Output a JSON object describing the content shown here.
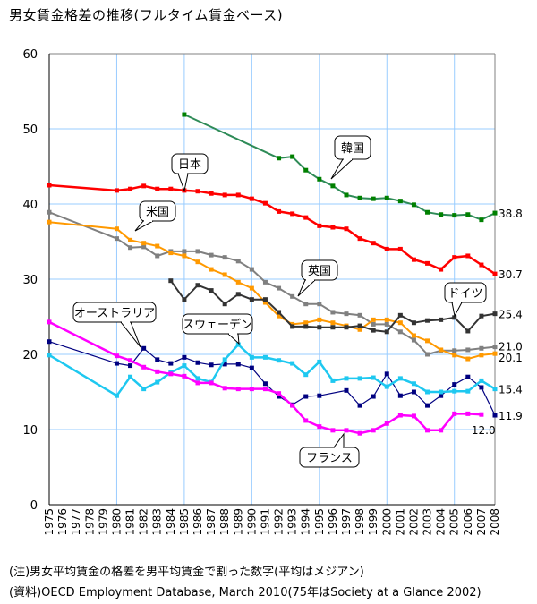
{
  "title": "男女賃金格差の推移(フルタイム賃金ベース)",
  "notes": {
    "note": "(注)男女平均賃金の格差を男平均賃金で割った数字(平均はメジアン)",
    "source": "(資料)OECD Employment Database, March 2010(75年はSociety at a Glance 2002)"
  },
  "chart_data": {
    "type": "line",
    "title": "男女賃金格差の推移(フルタイム賃金ベース)",
    "xlabel": "",
    "ylabel": "",
    "xlim": [
      1975,
      2008
    ],
    "ylim": [
      0,
      60
    ],
    "yticks": [
      0,
      10,
      20,
      30,
      40,
      50,
      60
    ],
    "xticks": [
      1975,
      1976,
      1977,
      1978,
      1979,
      1980,
      1981,
      1982,
      1983,
      1984,
      1985,
      1986,
      1987,
      1988,
      1989,
      1990,
      1991,
      1992,
      1993,
      1994,
      1995,
      1996,
      1997,
      1998,
      1999,
      2000,
      2001,
      2002,
      2003,
      2004,
      2005,
      2006,
      2007,
      2008
    ],
    "grid": true,
    "series": [
      {
        "name": "韓国",
        "color": "#2e8b57",
        "marker_color": "#008000",
        "width": 2,
        "label_end": "38.8",
        "points": [
          [
            1985,
            51.9
          ],
          [
            1992,
            46.1
          ],
          [
            1993,
            46.3
          ],
          [
            1994,
            44.5
          ],
          [
            1995,
            43.3
          ],
          [
            1996,
            42.4
          ],
          [
            1997,
            41.2
          ],
          [
            1998,
            40.8
          ],
          [
            1999,
            40.7
          ],
          [
            2000,
            40.8
          ],
          [
            2001,
            40.4
          ],
          [
            2002,
            39.9
          ],
          [
            2003,
            38.9
          ],
          [
            2004,
            38.6
          ],
          [
            2005,
            38.5
          ],
          [
            2006,
            38.6
          ],
          [
            2007,
            37.9
          ],
          [
            2008,
            38.8
          ]
        ]
      },
      {
        "name": "日本",
        "color": "#ff0000",
        "marker_color": "#ff0000",
        "width": 2.5,
        "label_end": "30.7",
        "points": [
          [
            1975,
            42.5
          ],
          [
            1980,
            41.8
          ],
          [
            1981,
            42.0
          ],
          [
            1982,
            42.4
          ],
          [
            1983,
            42.0
          ],
          [
            1984,
            42.0
          ],
          [
            1985,
            41.8
          ],
          [
            1986,
            41.7
          ],
          [
            1987,
            41.4
          ],
          [
            1988,
            41.2
          ],
          [
            1989,
            41.2
          ],
          [
            1990,
            40.7
          ],
          [
            1991,
            40.1
          ],
          [
            1992,
            39.0
          ],
          [
            1993,
            38.7
          ],
          [
            1994,
            38.2
          ],
          [
            1995,
            37.1
          ],
          [
            1996,
            36.9
          ],
          [
            1997,
            36.7
          ],
          [
            1998,
            35.4
          ],
          [
            1999,
            34.8
          ],
          [
            2000,
            34.0
          ],
          [
            2001,
            34.0
          ],
          [
            2002,
            32.6
          ],
          [
            2003,
            32.1
          ],
          [
            2004,
            31.3
          ],
          [
            2005,
            32.9
          ],
          [
            2006,
            33.1
          ],
          [
            2007,
            31.9
          ],
          [
            2008,
            30.7
          ]
        ]
      },
      {
        "name": "英国",
        "color": "#808080",
        "marker_color": "#808080",
        "width": 2,
        "label_end": "21.0",
        "points": [
          [
            1975,
            38.9
          ],
          [
            1980,
            35.4
          ],
          [
            1981,
            34.2
          ],
          [
            1982,
            34.3
          ],
          [
            1983,
            33.1
          ],
          [
            1984,
            33.7
          ],
          [
            1985,
            33.7
          ],
          [
            1986,
            33.7
          ],
          [
            1987,
            33.2
          ],
          [
            1988,
            32.9
          ],
          [
            1989,
            32.4
          ],
          [
            1990,
            31.3
          ],
          [
            1991,
            29.6
          ],
          [
            1992,
            28.8
          ],
          [
            1993,
            27.7
          ],
          [
            1994,
            26.7
          ],
          [
            1995,
            26.7
          ],
          [
            1996,
            25.6
          ],
          [
            1997,
            25.4
          ],
          [
            1998,
            25.2
          ],
          [
            1999,
            24.0
          ],
          [
            2000,
            24.0
          ],
          [
            2001,
            23.0
          ],
          [
            2002,
            21.9
          ],
          [
            2003,
            20.0
          ],
          [
            2004,
            20.5
          ],
          [
            2005,
            20.5
          ],
          [
            2006,
            20.6
          ],
          [
            2007,
            20.8
          ],
          [
            2008,
            21.0
          ]
        ]
      },
      {
        "name": "米国",
        "color": "#ff9900",
        "marker_color": "#ff9900",
        "width": 2,
        "label_end": "20.1",
        "points": [
          [
            1975,
            37.6
          ],
          [
            1980,
            36.7
          ],
          [
            1981,
            35.2
          ],
          [
            1982,
            34.8
          ],
          [
            1983,
            34.4
          ],
          [
            1984,
            33.5
          ],
          [
            1985,
            33.1
          ],
          [
            1986,
            32.3
          ],
          [
            1987,
            31.3
          ],
          [
            1988,
            30.6
          ],
          [
            1989,
            29.6
          ],
          [
            1990,
            28.8
          ],
          [
            1991,
            26.9
          ],
          [
            1992,
            25.1
          ],
          [
            1993,
            24.0
          ],
          [
            1994,
            24.2
          ],
          [
            1995,
            24.6
          ],
          [
            1996,
            24.2
          ],
          [
            1997,
            23.8
          ],
          [
            1998,
            23.3
          ],
          [
            1999,
            24.6
          ],
          [
            2000,
            24.6
          ],
          [
            2001,
            24.2
          ],
          [
            2002,
            22.5
          ],
          [
            2003,
            21.8
          ],
          [
            2004,
            20.6
          ],
          [
            2005,
            19.9
          ],
          [
            2006,
            19.4
          ],
          [
            2007,
            19.9
          ],
          [
            2008,
            20.1
          ]
        ]
      },
      {
        "name": "ドイツ",
        "color": "#333333",
        "marker_color": "#333333",
        "width": 2,
        "label_end": "25.4",
        "points": [
          [
            1984,
            29.8
          ],
          [
            1985,
            27.3
          ],
          [
            1986,
            29.2
          ],
          [
            1987,
            28.5
          ],
          [
            1988,
            26.7
          ],
          [
            1989,
            28.0
          ],
          [
            1990,
            27.3
          ],
          [
            1991,
            27.3
          ],
          [
            1992,
            25.6
          ],
          [
            1993,
            23.7
          ],
          [
            1994,
            23.7
          ],
          [
            1995,
            23.6
          ],
          [
            1996,
            23.6
          ],
          [
            1997,
            23.6
          ],
          [
            1998,
            23.8
          ],
          [
            1999,
            23.2
          ],
          [
            2000,
            23.0
          ],
          [
            2001,
            25.2
          ],
          [
            2002,
            24.2
          ],
          [
            2003,
            24.5
          ],
          [
            2004,
            24.6
          ],
          [
            2005,
            24.9
          ],
          [
            2006,
            23.1
          ],
          [
            2007,
            25.1
          ],
          [
            2008,
            25.4
          ]
        ]
      },
      {
        "name": "オーストラリア",
        "color": "#000080",
        "marker_color": "#000080",
        "width": 1.2,
        "label_end": "11.9",
        "points": [
          [
            1975,
            21.7
          ],
          [
            1980,
            18.8
          ],
          [
            1981,
            18.5
          ],
          [
            1982,
            20.8
          ],
          [
            1983,
            19.3
          ],
          [
            1984,
            18.8
          ],
          [
            1985,
            19.6
          ],
          [
            1986,
            18.9
          ],
          [
            1987,
            18.6
          ],
          [
            1988,
            18.7
          ],
          [
            1989,
            18.7
          ],
          [
            1990,
            18.2
          ],
          [
            1991,
            16.1
          ],
          [
            1992,
            14.4
          ],
          [
            1993,
            13.3
          ],
          [
            1994,
            14.4
          ],
          [
            1995,
            14.5
          ],
          [
            1997,
            15.2
          ],
          [
            1998,
            13.2
          ],
          [
            1999,
            14.4
          ],
          [
            2000,
            17.4
          ],
          [
            2001,
            14.5
          ],
          [
            2002,
            15.0
          ],
          [
            2003,
            13.2
          ],
          [
            2004,
            14.5
          ],
          [
            2005,
            16.0
          ],
          [
            2006,
            17.0
          ],
          [
            2007,
            15.6
          ],
          [
            2008,
            11.9
          ]
        ]
      },
      {
        "name": "スウェーデン",
        "color": "#1ec8f0",
        "marker_color": "#1ec8f0",
        "width": 2.5,
        "label_end": "15.4",
        "points": [
          [
            1975,
            19.9
          ],
          [
            1980,
            14.5
          ],
          [
            1981,
            17.0
          ],
          [
            1982,
            15.4
          ],
          [
            1983,
            16.3
          ],
          [
            1984,
            17.6
          ],
          [
            1985,
            18.5
          ],
          [
            1986,
            16.8
          ],
          [
            1987,
            16.3
          ],
          [
            1988,
            19.3
          ],
          [
            1989,
            21.3
          ],
          [
            1990,
            19.6
          ],
          [
            1991,
            19.6
          ],
          [
            1992,
            19.2
          ],
          [
            1993,
            18.8
          ],
          [
            1994,
            17.3
          ],
          [
            1995,
            19.0
          ],
          [
            1996,
            16.5
          ],
          [
            1997,
            16.8
          ],
          [
            1998,
            16.8
          ],
          [
            1999,
            16.9
          ],
          [
            2000,
            15.7
          ],
          [
            2001,
            16.8
          ],
          [
            2002,
            16.1
          ],
          [
            2003,
            15.0
          ],
          [
            2004,
            15.0
          ],
          [
            2005,
            15.1
          ],
          [
            2006,
            15.1
          ],
          [
            2007,
            16.5
          ],
          [
            2008,
            15.4
          ]
        ]
      },
      {
        "name": "フランス",
        "color": "#ff00ff",
        "marker_color": "#ff00ff",
        "width": 2.5,
        "label_end": "12.0",
        "points": [
          [
            1975,
            24.3
          ],
          [
            1980,
            19.8
          ],
          [
            1981,
            19.2
          ],
          [
            1982,
            18.3
          ],
          [
            1983,
            17.7
          ],
          [
            1984,
            17.4
          ],
          [
            1985,
            17.1
          ],
          [
            1986,
            16.2
          ],
          [
            1987,
            16.2
          ],
          [
            1988,
            15.5
          ],
          [
            1989,
            15.4
          ],
          [
            1990,
            15.4
          ],
          [
            1991,
            15.4
          ],
          [
            1992,
            14.8
          ],
          [
            1993,
            13.2
          ],
          [
            1994,
            11.2
          ],
          [
            1995,
            10.4
          ],
          [
            1996,
            9.9
          ],
          [
            1997,
            9.9
          ],
          [
            1998,
            9.5
          ],
          [
            1999,
            9.9
          ],
          [
            2000,
            10.8
          ],
          [
            2001,
            11.9
          ],
          [
            2002,
            11.8
          ],
          [
            2003,
            9.9
          ],
          [
            2004,
            9.9
          ],
          [
            2005,
            12.1
          ],
          [
            2006,
            12.1
          ],
          [
            2007,
            12.0
          ]
        ]
      }
    ],
    "callouts": [
      {
        "series": "韓国",
        "text": "韓国"
      },
      {
        "series": "日本",
        "text": "日本"
      },
      {
        "series": "米国",
        "text": "米国"
      },
      {
        "series": "英国",
        "text": "英国"
      },
      {
        "series": "ドイツ",
        "text": "ドイツ"
      },
      {
        "series": "オーストラリア",
        "text": "オーストラリア"
      },
      {
        "series": "スウェーデン",
        "text": "スウェーデン"
      },
      {
        "series": "フランス",
        "text": "フランス"
      }
    ]
  }
}
